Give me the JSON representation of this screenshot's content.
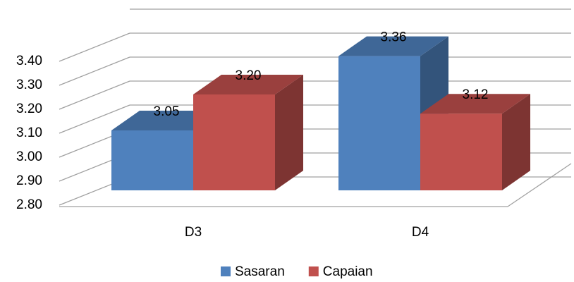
{
  "chart_data": {
    "type": "bar3d",
    "categories": [
      "D3",
      "D4"
    ],
    "series": [
      {
        "name": "Sasaran",
        "color": "#4f81bd",
        "values": [
          3.05,
          3.36
        ],
        "value_labels": [
          "3.05",
          "3.36"
        ]
      },
      {
        "name": "Capaian",
        "color": "#c0504d",
        "values": [
          3.2,
          3.12
        ],
        "value_labels": [
          "3.20",
          "3.12"
        ]
      }
    ],
    "ylim": [
      2.8,
      3.5
    ],
    "yticks": [
      {
        "value": 2.8,
        "label": "2.80"
      },
      {
        "value": 2.9,
        "label": "2.90"
      },
      {
        "value": 3.0,
        "label": "3.00"
      },
      {
        "value": 3.1,
        "label": "3.10"
      },
      {
        "value": 3.2,
        "label": "3.20"
      },
      {
        "value": 3.3,
        "label": "3.30"
      },
      {
        "value": 3.4,
        "label": "3.40"
      }
    ],
    "grid": true,
    "legend": "bottom"
  }
}
